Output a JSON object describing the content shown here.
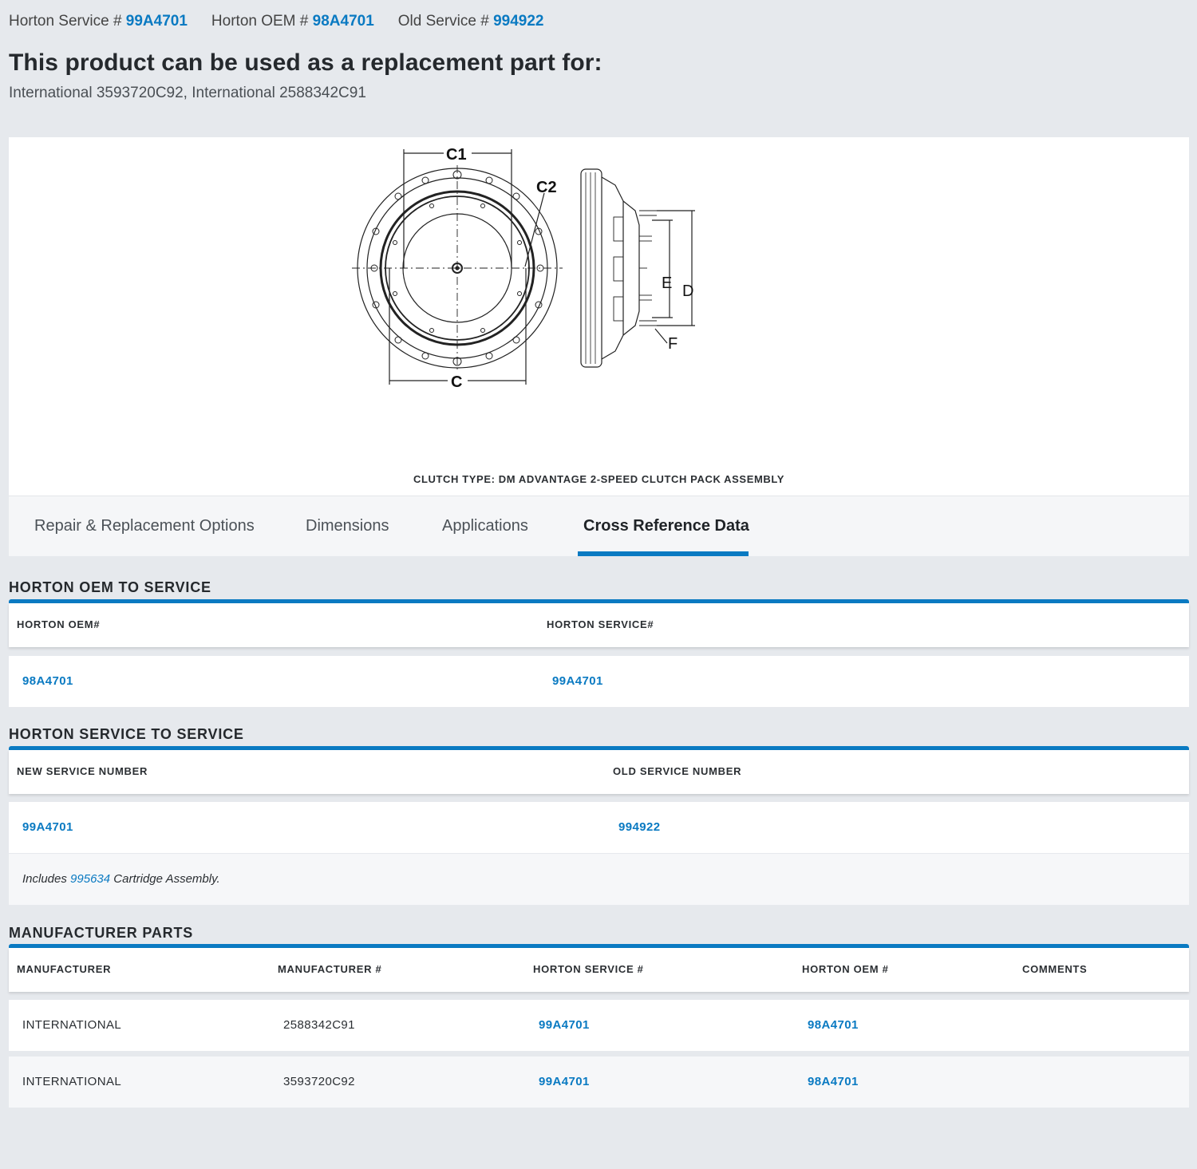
{
  "header": {
    "service_label": "Horton Service #",
    "service_value": "99A4701",
    "oem_label": "Horton OEM #",
    "oem_value": "98A4701",
    "old_label": "Old Service #",
    "old_value": "994922",
    "headline": "This product can be used as a replacement part for:",
    "replacement_list": "International 3593720C92, International 2588342C91"
  },
  "product": {
    "diagram_labels": {
      "c1": "C1",
      "c2": "C2",
      "c": "C",
      "d": "D",
      "e": "E",
      "f": "F"
    },
    "clutch_type": "CLUTCH TYPE: DM ADVANTAGE 2-SPEED CLUTCH PACK ASSEMBLY"
  },
  "tabs": [
    {
      "label": "Repair & Replacement Options",
      "active": false
    },
    {
      "label": "Dimensions",
      "active": false
    },
    {
      "label": "Applications",
      "active": false
    },
    {
      "label": "Cross Reference Data",
      "active": true
    }
  ],
  "oem_to_service": {
    "title": "HORTON OEM TO SERVICE",
    "columns": [
      "HORTON OEM#",
      "HORTON SERVICE#"
    ],
    "rows": [
      [
        "98A4701",
        "99A4701"
      ]
    ]
  },
  "service_to_service": {
    "title": "HORTON SERVICE TO SERVICE",
    "columns": [
      "NEW SERVICE NUMBER",
      "OLD SERVICE NUMBER"
    ],
    "rows": [
      [
        "99A4701",
        "994922"
      ]
    ],
    "note_prefix": "Includes",
    "note_link": "995634",
    "note_suffix": "Cartridge Assembly."
  },
  "manufacturer_parts": {
    "title": "MANUFACTURER PARTS",
    "columns": [
      "MANUFACTURER",
      "MANUFACTURER #",
      "HORTON SERVICE #",
      "HORTON OEM #",
      "COMMENTS"
    ],
    "rows": [
      [
        "INTERNATIONAL",
        "2588342C91",
        "99A4701",
        "98A4701",
        ""
      ],
      [
        "INTERNATIONAL",
        "3593720C92",
        "99A4701",
        "98A4701",
        ""
      ]
    ]
  },
  "colors": {
    "accent": "#0a7ac2",
    "background": "#e6e9ed",
    "text": "#2b2f33"
  }
}
